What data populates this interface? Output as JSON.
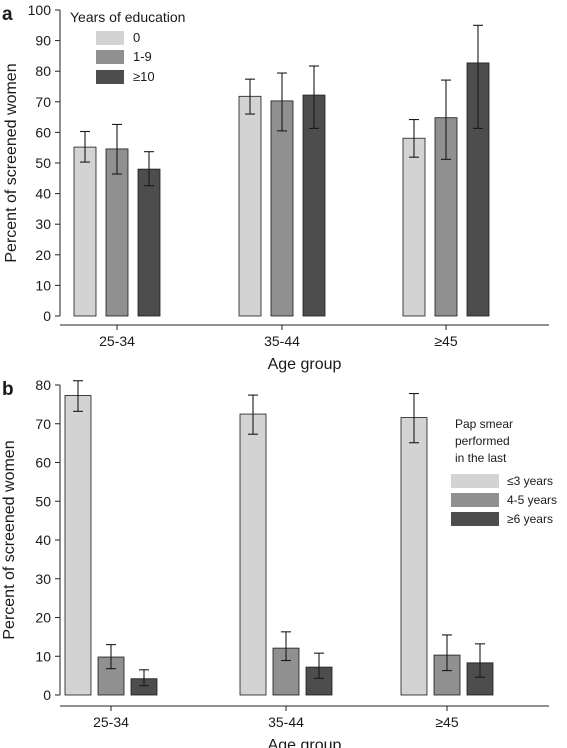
{
  "chart_data": [
    {
      "panel": "a",
      "type": "bar",
      "xlabel": "Age group",
      "ylabel": "Percent of screened women",
      "ylim": [
        0,
        100
      ],
      "yticks": [
        0,
        10,
        20,
        30,
        40,
        50,
        60,
        70,
        80,
        90,
        100
      ],
      "categories": [
        "25-34",
        "35-44",
        "≥45"
      ],
      "legend": {
        "title": "Years of education",
        "placement": "top-left"
      },
      "series": [
        {
          "name": "0",
          "color": "#d3d3d3",
          "values": [
            55.2,
            71.8,
            58.1
          ],
          "err_low": [
            50.3,
            66.0,
            51.9
          ],
          "err_high": [
            60.3,
            77.4,
            64.2
          ]
        },
        {
          "name": "1-9",
          "color": "#909090",
          "values": [
            54.6,
            70.3,
            64.8
          ],
          "err_low": [
            46.4,
            60.5,
            51.2
          ],
          "err_high": [
            62.6,
            79.4,
            77.1
          ]
        },
        {
          "name": "≥10",
          "color": "#4d4d4d",
          "values": [
            48.0,
            72.2,
            82.7
          ],
          "err_low": [
            42.6,
            61.3,
            61.3
          ],
          "err_high": [
            53.7,
            81.7,
            95.0
          ]
        }
      ]
    },
    {
      "panel": "b",
      "type": "bar",
      "xlabel": "Age group",
      "ylabel": "Percent of screened women",
      "ylim": [
        0,
        80
      ],
      "yticks": [
        0,
        10,
        20,
        30,
        40,
        50,
        60,
        70,
        80
      ],
      "categories": [
        "25-34",
        "35-44",
        "≥45"
      ],
      "legend": {
        "title_lines": [
          "Pap smear",
          "performed",
          "in the last"
        ],
        "placement": "right"
      },
      "series": [
        {
          "name": "≤3 years",
          "color": "#d3d3d3",
          "values": [
            77.3,
            72.5,
            71.6
          ],
          "err_low": [
            73.2,
            67.3,
            65.1
          ],
          "err_high": [
            81.1,
            77.4,
            77.8
          ]
        },
        {
          "name": "4-5 years",
          "color": "#909090",
          "values": [
            9.8,
            12.1,
            10.3
          ],
          "err_low": [
            6.8,
            8.9,
            6.3
          ],
          "err_high": [
            13.0,
            16.3,
            15.5
          ]
        },
        {
          "name": "≥6 years",
          "color": "#4d4d4d",
          "values": [
            4.2,
            7.2,
            8.3
          ],
          "err_low": [
            2.4,
            4.3,
            4.6
          ],
          "err_high": [
            6.5,
            10.8,
            13.2
          ]
        }
      ]
    }
  ]
}
